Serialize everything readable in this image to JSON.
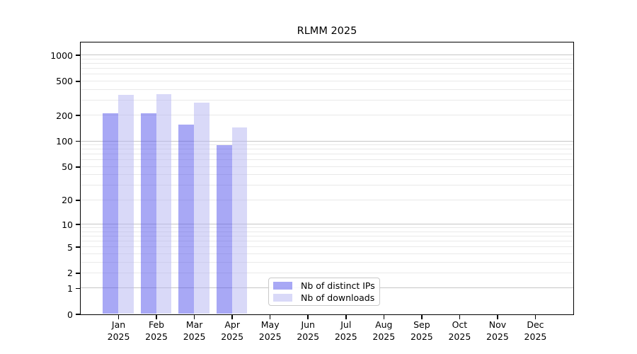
{
  "chart_data": {
    "type": "bar",
    "title": "RLMM 2025",
    "year_label": "2025",
    "categories": [
      "Jan",
      "Feb",
      "Mar",
      "Apr",
      "May",
      "Jun",
      "Jul",
      "Aug",
      "Sep",
      "Oct",
      "Nov",
      "Dec"
    ],
    "series": [
      {
        "name": "Nb of distinct IPs",
        "color": "rgba(82,82,235,0.5)",
        "values": [
          210,
          210,
          155,
          90,
          null,
          null,
          null,
          null,
          null,
          null,
          null,
          null
        ]
      },
      {
        "name": "Nb of downloads",
        "color": "rgba(180,180,242,0.5)",
        "values": [
          345,
          350,
          278,
          143,
          null,
          null,
          null,
          null,
          null,
          null,
          null,
          null
        ]
      }
    ],
    "xlabel": "",
    "ylabel": "",
    "yscale": "log1p",
    "yticks": [
      0,
      1,
      2,
      5,
      10,
      20,
      50,
      100,
      200,
      500,
      1000
    ],
    "ylim": [
      0,
      1405
    ],
    "grid": "horizontal major and minor log-decade gridlines",
    "legend_position": "inside-bottom-center",
    "colors": {
      "major_gridline": "#c6c6c6",
      "minor_gridline": "#e9e9e9",
      "axis": "#000000",
      "legend_border": "#c9c9c9"
    }
  }
}
